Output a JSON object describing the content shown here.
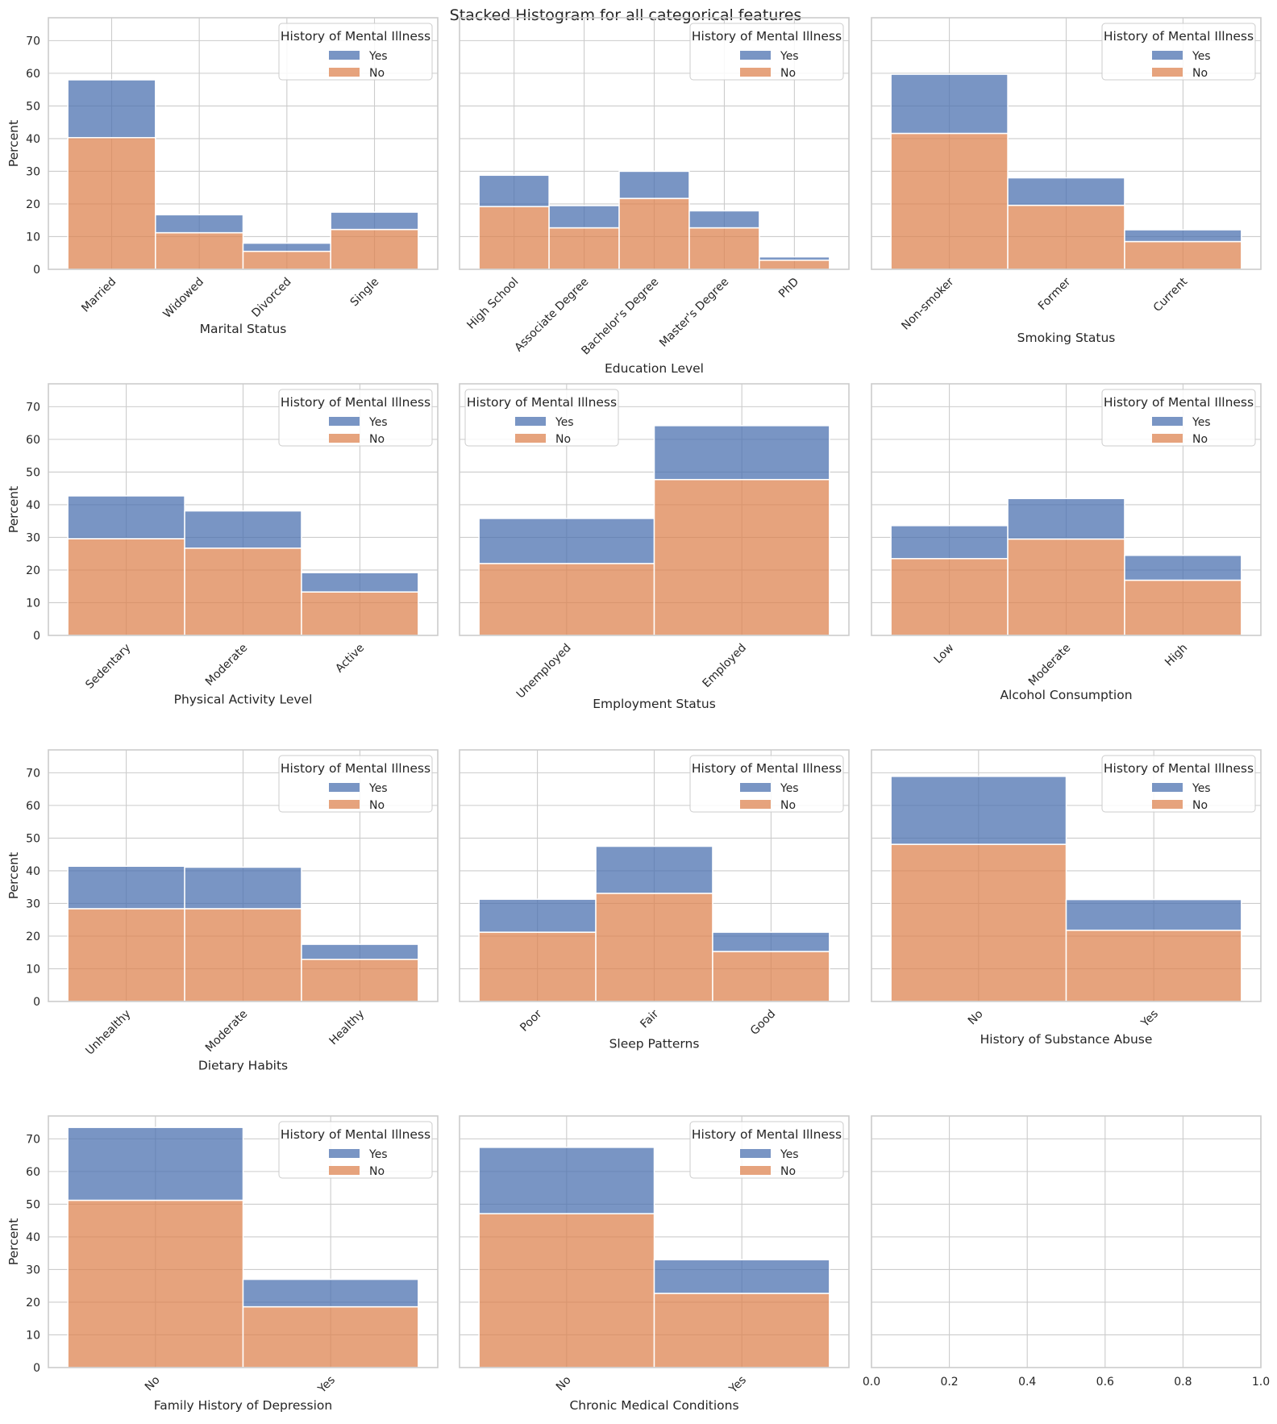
{
  "figure_title": "Stacked Histogram for all categorical features",
  "colors": {
    "yes": "#4c72b0",
    "no": "#dd8452"
  },
  "chart_data": [
    {
      "type": "bar",
      "stacked": true,
      "xlabel": "Marital Status",
      "ylabel": "Percent",
      "ylim": [
        0,
        77
      ],
      "yticks": [
        0,
        10,
        20,
        30,
        40,
        50,
        60,
        70
      ],
      "categories": [
        "Married",
        "Widowed",
        "Divorced",
        "Single"
      ],
      "series": [
        {
          "name": "No",
          "values": [
            40.3,
            11.2,
            5.5,
            12.2
          ]
        },
        {
          "name": "Yes",
          "values": [
            17.7,
            5.5,
            2.5,
            5.3
          ]
        }
      ],
      "legend": {
        "title": "History of Mental Illness",
        "entries": [
          "Yes",
          "No"
        ],
        "loc": "upper right"
      }
    },
    {
      "type": "bar",
      "stacked": true,
      "xlabel": "Education Level",
      "ylabel": "",
      "ylim": [
        0,
        77
      ],
      "yticks": [
        0,
        10,
        20,
        30,
        40,
        50,
        60,
        70
      ],
      "categories": [
        "High School",
        "Associate Degree",
        "Bachelor's Degree",
        "Master's Degree",
        "PhD"
      ],
      "series": [
        {
          "name": "No",
          "values": [
            19.2,
            12.7,
            21.7,
            12.7,
            2.8
          ]
        },
        {
          "name": "Yes",
          "values": [
            9.6,
            6.8,
            8.3,
            5.2,
            1.0
          ]
        }
      ],
      "legend": {
        "title": "History of Mental Illness",
        "entries": [
          "Yes",
          "No"
        ],
        "loc": "upper right"
      }
    },
    {
      "type": "bar",
      "stacked": true,
      "xlabel": "Smoking Status",
      "ylabel": "",
      "ylim": [
        0,
        77
      ],
      "yticks": [
        0,
        10,
        20,
        30,
        40,
        50,
        60,
        70
      ],
      "categories": [
        "Non-smoker",
        "Former",
        "Current"
      ],
      "series": [
        {
          "name": "No",
          "values": [
            41.6,
            19.6,
            8.5
          ]
        },
        {
          "name": "Yes",
          "values": [
            18.1,
            8.4,
            3.6
          ]
        }
      ],
      "legend": {
        "title": "History of Mental Illness",
        "entries": [
          "Yes",
          "No"
        ],
        "loc": "upper right"
      }
    },
    {
      "type": "bar",
      "stacked": true,
      "xlabel": "Physical Activity Level",
      "ylabel": "Percent",
      "ylim": [
        0,
        77
      ],
      "yticks": [
        0,
        10,
        20,
        30,
        40,
        50,
        60,
        70
      ],
      "categories": [
        "Sedentary",
        "Moderate",
        "Active"
      ],
      "series": [
        {
          "name": "No",
          "values": [
            29.6,
            26.7,
            13.3
          ]
        },
        {
          "name": "Yes",
          "values": [
            13.1,
            11.4,
            5.9
          ]
        }
      ],
      "legend": {
        "title": "History of Mental Illness",
        "entries": [
          "Yes",
          "No"
        ],
        "loc": "upper right"
      }
    },
    {
      "type": "bar",
      "stacked": true,
      "xlabel": "Employment Status",
      "ylabel": "",
      "ylim": [
        0,
        77
      ],
      "yticks": [
        0,
        10,
        20,
        30,
        40,
        50,
        60,
        70
      ],
      "categories": [
        "Unemployed",
        "Employed"
      ],
      "series": [
        {
          "name": "No",
          "values": [
            22.0,
            47.7
          ]
        },
        {
          "name": "Yes",
          "values": [
            13.8,
            16.5
          ]
        }
      ],
      "legend": {
        "title": "History of Mental Illness",
        "entries": [
          "Yes",
          "No"
        ],
        "loc": "upper left"
      }
    },
    {
      "type": "bar",
      "stacked": true,
      "xlabel": "Alcohol Consumption",
      "ylabel": "",
      "ylim": [
        0,
        77
      ],
      "yticks": [
        0,
        10,
        20,
        30,
        40,
        50,
        60,
        70
      ],
      "categories": [
        "Low",
        "Moderate",
        "High"
      ],
      "series": [
        {
          "name": "No",
          "values": [
            23.5,
            29.5,
            16.9
          ]
        },
        {
          "name": "Yes",
          "values": [
            10.1,
            12.4,
            7.6
          ]
        }
      ],
      "legend": {
        "title": "History of Mental Illness",
        "entries": [
          "Yes",
          "No"
        ],
        "loc": "upper right"
      }
    },
    {
      "type": "bar",
      "stacked": true,
      "xlabel": "Dietary Habits",
      "ylabel": "Percent",
      "ylim": [
        0,
        77
      ],
      "yticks": [
        0,
        10,
        20,
        30,
        40,
        50,
        60,
        70
      ],
      "categories": [
        "Unhealthy",
        "Moderate",
        "Healthy"
      ],
      "series": [
        {
          "name": "No",
          "values": [
            28.4,
            28.4,
            12.9
          ]
        },
        {
          "name": "Yes",
          "values": [
            13.0,
            12.7,
            4.6
          ]
        }
      ],
      "legend": {
        "title": "History of Mental Illness",
        "entries": [
          "Yes",
          "No"
        ],
        "loc": "upper right"
      }
    },
    {
      "type": "bar",
      "stacked": true,
      "xlabel": "Sleep Patterns",
      "ylabel": "",
      "ylim": [
        0,
        77
      ],
      "yticks": [
        0,
        10,
        20,
        30,
        40,
        50,
        60,
        70
      ],
      "categories": [
        "Poor",
        "Fair",
        "Good"
      ],
      "series": [
        {
          "name": "No",
          "values": [
            21.2,
            33.1,
            15.3
          ]
        },
        {
          "name": "Yes",
          "values": [
            10.1,
            14.4,
            5.9
          ]
        }
      ],
      "legend": {
        "title": "History of Mental Illness",
        "entries": [
          "Yes",
          "No"
        ],
        "loc": "upper right"
      }
    },
    {
      "type": "bar",
      "stacked": true,
      "xlabel": "History of Substance Abuse",
      "ylabel": "",
      "ylim": [
        0,
        77
      ],
      "yticks": [
        0,
        10,
        20,
        30,
        40,
        50,
        60,
        70
      ],
      "categories": [
        "No",
        "Yes"
      ],
      "series": [
        {
          "name": "No",
          "values": [
            48.1,
            21.8
          ]
        },
        {
          "name": "Yes",
          "values": [
            20.8,
            9.4
          ]
        }
      ],
      "legend": {
        "title": "History of Mental Illness",
        "entries": [
          "Yes",
          "No"
        ],
        "loc": "upper right"
      }
    },
    {
      "type": "bar",
      "stacked": true,
      "xlabel": "Family History of Depression",
      "ylabel": "Percent",
      "ylim": [
        0,
        77
      ],
      "yticks": [
        0,
        10,
        20,
        30,
        40,
        50,
        60,
        70
      ],
      "categories": [
        "No",
        "Yes"
      ],
      "series": [
        {
          "name": "No",
          "values": [
            51.2,
            18.6
          ]
        },
        {
          "name": "Yes",
          "values": [
            22.3,
            8.4
          ]
        }
      ],
      "legend": {
        "title": "History of Mental Illness",
        "entries": [
          "Yes",
          "No"
        ],
        "loc": "upper right"
      }
    },
    {
      "type": "bar",
      "stacked": true,
      "xlabel": "Chronic Medical Conditions",
      "ylabel": "",
      "ylim": [
        0,
        77
      ],
      "yticks": [
        0,
        10,
        20,
        30,
        40,
        50,
        60,
        70
      ],
      "categories": [
        "No",
        "Yes"
      ],
      "series": [
        {
          "name": "No",
          "values": [
            47.1,
            22.7
          ]
        },
        {
          "name": "Yes",
          "values": [
            20.3,
            10.3
          ]
        }
      ],
      "legend": {
        "title": "History of Mental Illness",
        "entries": [
          "Yes",
          "No"
        ],
        "loc": "upper right"
      }
    },
    {
      "type": "empty",
      "xlim": [
        0,
        1
      ],
      "xticks": [
        "0.0",
        "0.2",
        "0.4",
        "0.6",
        "0.8",
        "1.0"
      ],
      "ylim": [
        0,
        77
      ],
      "yticks": [
        0,
        10,
        20,
        30,
        40,
        50,
        60,
        70
      ]
    }
  ]
}
